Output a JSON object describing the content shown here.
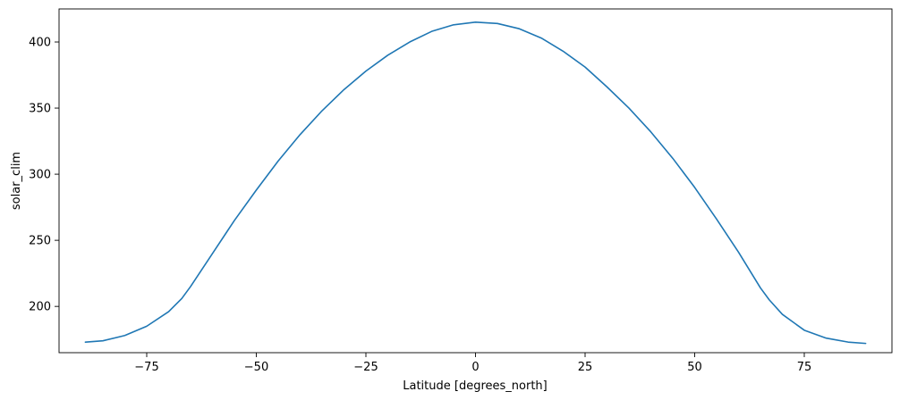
{
  "chart_data": {
    "type": "line",
    "title": "",
    "xlabel": "Latitude [degrees_north]",
    "ylabel": "solar_clim",
    "xlim": [
      -95,
      95
    ],
    "ylim": [
      165,
      425
    ],
    "xticks": [
      -75,
      -50,
      -25,
      0,
      25,
      50,
      75
    ],
    "xtick_labels": [
      "−75",
      "−50",
      "−25",
      "0",
      "25",
      "50",
      "75"
    ],
    "yticks": [
      200,
      250,
      300,
      350,
      400
    ],
    "ytick_labels": [
      "200",
      "250",
      "300",
      "350",
      "400"
    ],
    "grid": false,
    "line_color": "#1f77b4",
    "series": [
      {
        "x": [
          -89,
          -85,
          -80,
          -75,
          -70,
          -67,
          -65,
          -60,
          -55,
          -50,
          -45,
          -40,
          -35,
          -30,
          -25,
          -20,
          -15,
          -10,
          -5,
          0,
          5,
          10,
          15,
          20,
          25,
          30,
          35,
          40,
          45,
          50,
          55,
          60,
          65,
          67,
          70,
          75,
          80,
          85,
          89
        ],
        "y": [
          173,
          174,
          178,
          185,
          196,
          206,
          215,
          240,
          265,
          288,
          310,
          330,
          348,
          364,
          378,
          390,
          400,
          408,
          413,
          415,
          414,
          410,
          403,
          393,
          381,
          366,
          350,
          332,
          312,
          290,
          266,
          241,
          214,
          205,
          194,
          182,
          176,
          173,
          172
        ]
      }
    ]
  }
}
